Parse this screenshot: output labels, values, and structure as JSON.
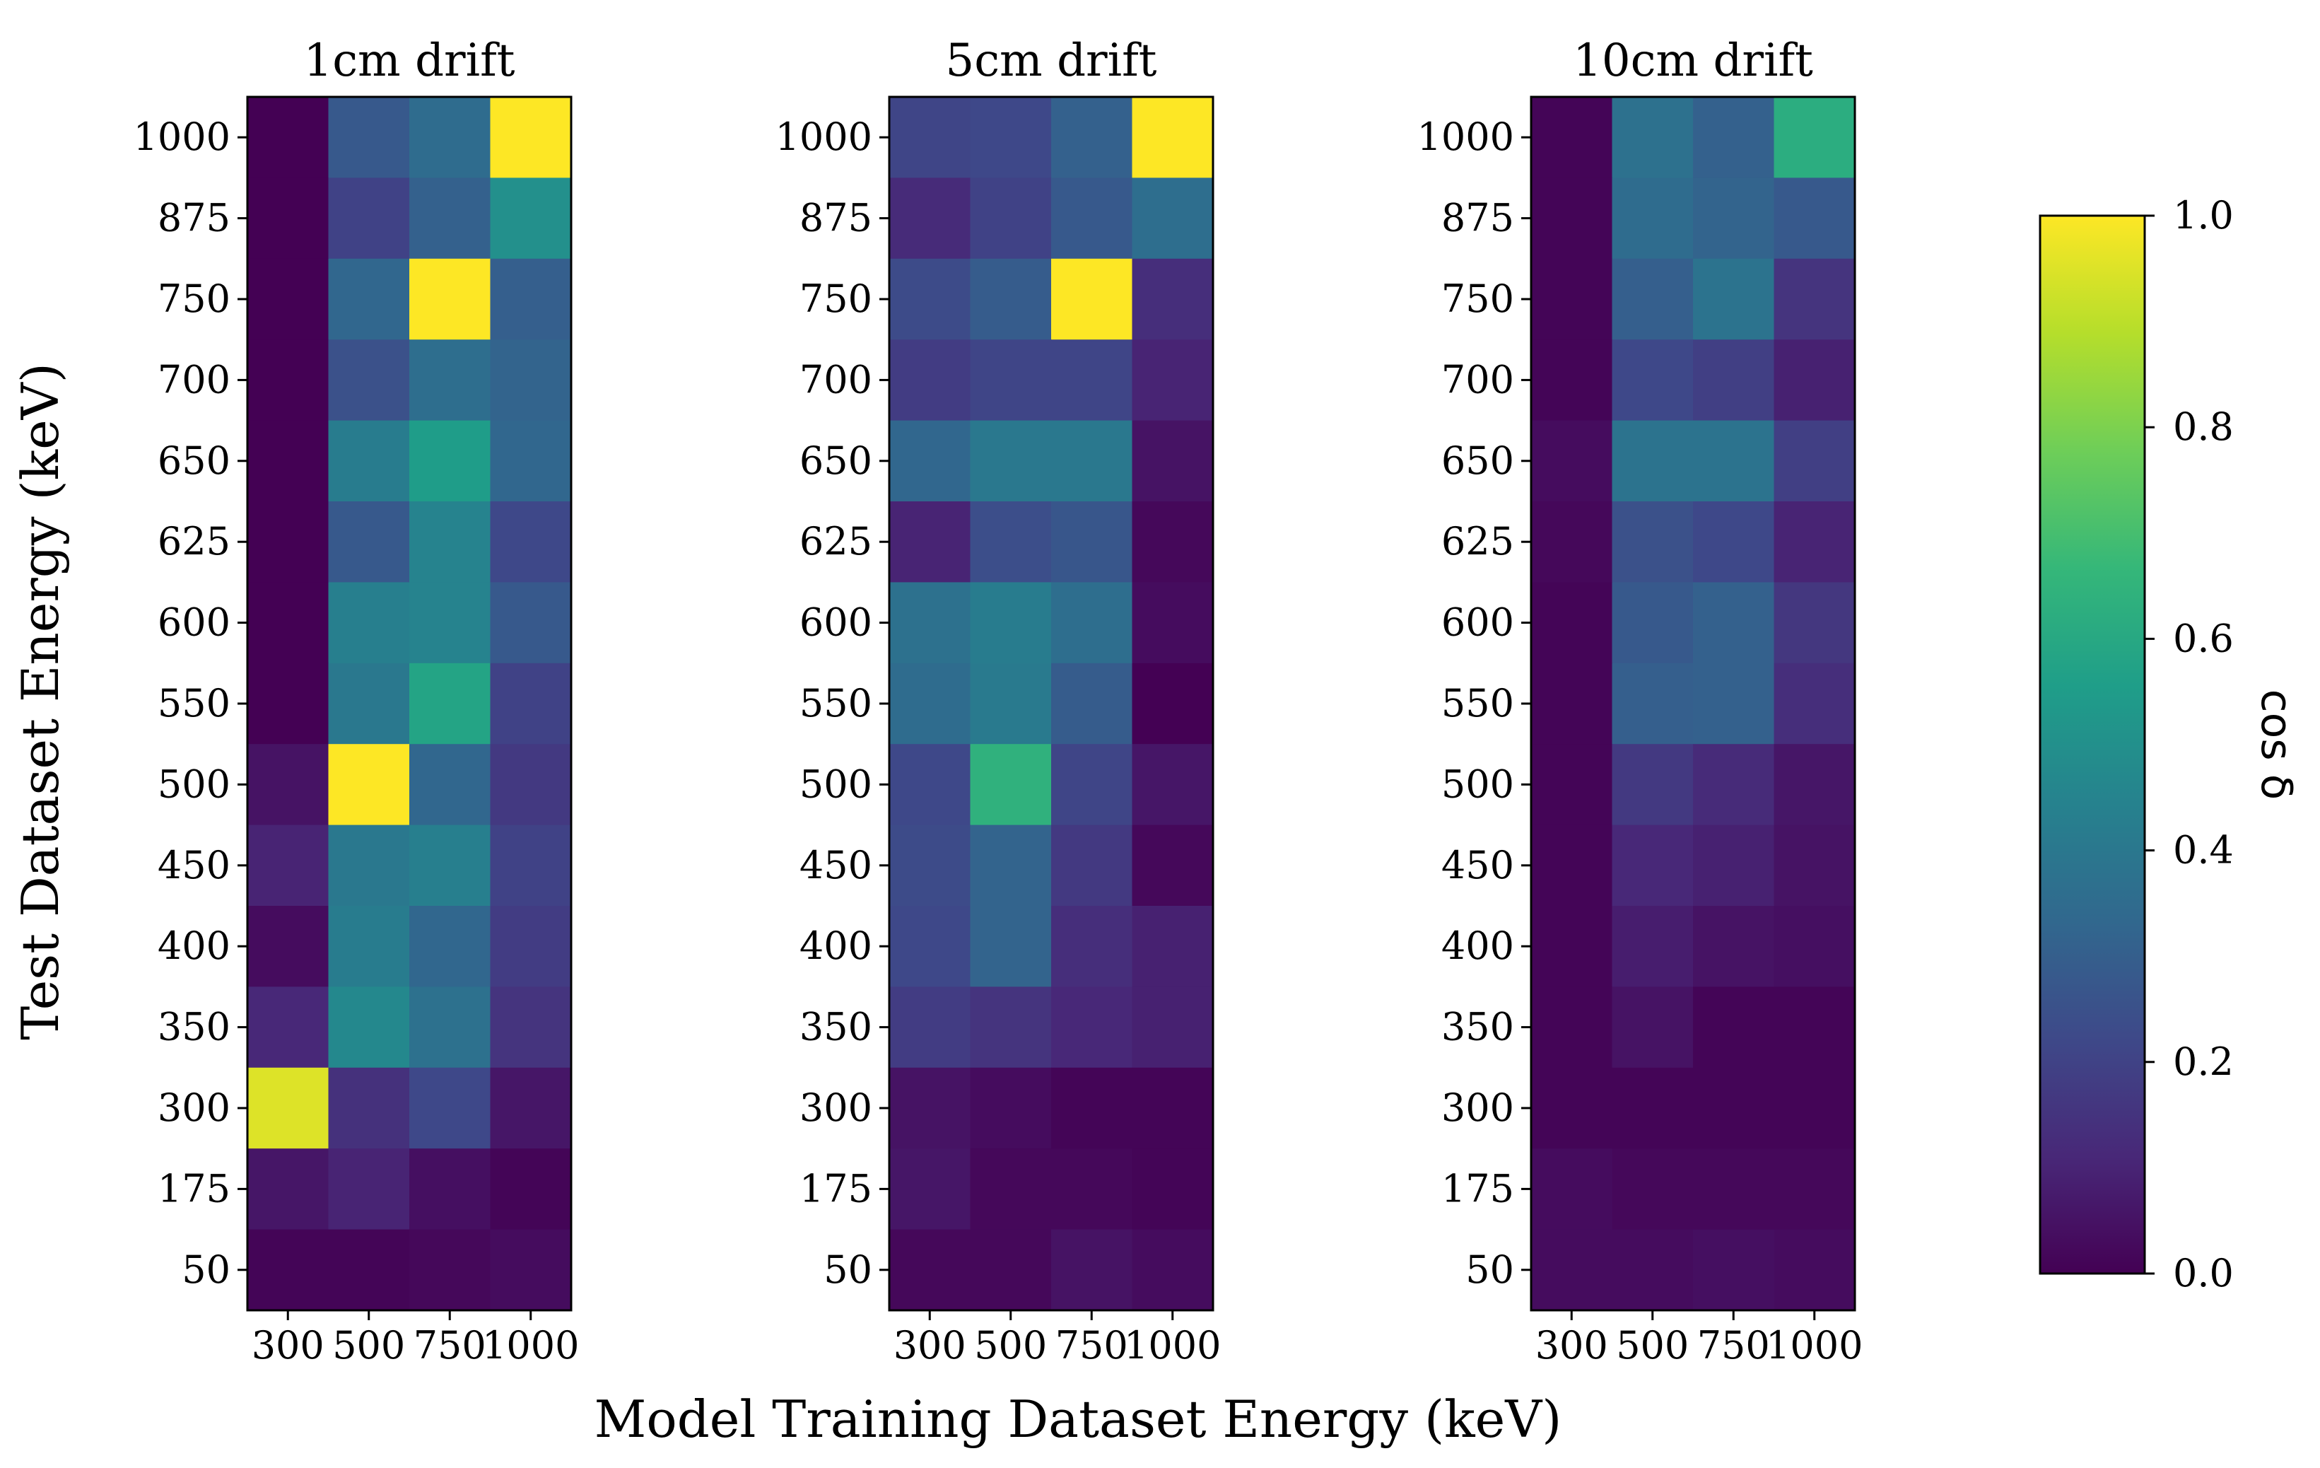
{
  "chart_data": {
    "type": "heatmap",
    "xlabel": "Model Training Dataset Energy (keV)",
    "ylabel": "Test Dataset Energy (keV)",
    "x_categories": [
      "300",
      "500",
      "750",
      "1000"
    ],
    "y_categories": [
      "1000",
      "875",
      "750",
      "700",
      "650",
      "625",
      "600",
      "550",
      "500",
      "450",
      "400",
      "350",
      "300",
      "175",
      "50"
    ],
    "colorbar": {
      "label": "cos δ",
      "range": [
        0.0,
        1.0
      ],
      "ticks": [
        "0.0",
        "0.2",
        "0.4",
        "0.6",
        "0.8",
        "1.0"
      ],
      "colormap": [
        "#440154",
        "#482878",
        "#3e4989",
        "#31688e",
        "#26828e",
        "#1f9e89",
        "#35b779",
        "#6ece58",
        "#b5de2b",
        "#fde725"
      ]
    },
    "panels": [
      {
        "title": "1cm drift",
        "values": [
          [
            0.0,
            0.28,
            0.35,
            1.0
          ],
          [
            0.0,
            0.2,
            0.31,
            0.5
          ],
          [
            0.0,
            0.33,
            1.0,
            0.3
          ],
          [
            0.0,
            0.25,
            0.36,
            0.32
          ],
          [
            0.0,
            0.42,
            0.55,
            0.33
          ],
          [
            0.0,
            0.28,
            0.45,
            0.22
          ],
          [
            0.0,
            0.43,
            0.45,
            0.28
          ],
          [
            0.0,
            0.4,
            0.58,
            0.2
          ],
          [
            0.05,
            1.0,
            0.33,
            0.17
          ],
          [
            0.1,
            0.4,
            0.43,
            0.2
          ],
          [
            0.03,
            0.42,
            0.33,
            0.18
          ],
          [
            0.11,
            0.47,
            0.37,
            0.15
          ],
          [
            0.95,
            0.14,
            0.22,
            0.06
          ],
          [
            0.06,
            0.1,
            0.04,
            0.01
          ],
          [
            0.01,
            0.01,
            0.02,
            0.03
          ]
        ]
      },
      {
        "title": "5cm drift",
        "values": [
          [
            0.21,
            0.22,
            0.31,
            1.0
          ],
          [
            0.12,
            0.2,
            0.28,
            0.36
          ],
          [
            0.23,
            0.29,
            1.0,
            0.13
          ],
          [
            0.18,
            0.21,
            0.21,
            0.1
          ],
          [
            0.33,
            0.4,
            0.4,
            0.05
          ],
          [
            0.1,
            0.24,
            0.27,
            0.02
          ],
          [
            0.37,
            0.42,
            0.36,
            0.03
          ],
          [
            0.35,
            0.41,
            0.29,
            0.0
          ],
          [
            0.22,
            0.64,
            0.21,
            0.06
          ],
          [
            0.23,
            0.32,
            0.17,
            0.02
          ],
          [
            0.22,
            0.32,
            0.13,
            0.09
          ],
          [
            0.18,
            0.15,
            0.11,
            0.09
          ],
          [
            0.05,
            0.03,
            0.01,
            0.01
          ],
          [
            0.06,
            0.02,
            0.02,
            0.01
          ],
          [
            0.02,
            0.02,
            0.05,
            0.03
          ]
        ]
      },
      {
        "title": "10cm drift",
        "values": [
          [
            0.01,
            0.37,
            0.31,
            0.62
          ],
          [
            0.01,
            0.35,
            0.32,
            0.28
          ],
          [
            0.01,
            0.3,
            0.38,
            0.15
          ],
          [
            0.01,
            0.22,
            0.19,
            0.09
          ],
          [
            0.03,
            0.38,
            0.38,
            0.19
          ],
          [
            0.02,
            0.25,
            0.22,
            0.1
          ],
          [
            0.01,
            0.28,
            0.31,
            0.16
          ],
          [
            0.01,
            0.3,
            0.31,
            0.13
          ],
          [
            0.01,
            0.17,
            0.12,
            0.06
          ],
          [
            0.01,
            0.11,
            0.09,
            0.05
          ],
          [
            0.01,
            0.08,
            0.05,
            0.04
          ],
          [
            0.01,
            0.05,
            0.01,
            0.01
          ],
          [
            0.01,
            0.01,
            0.01,
            0.01
          ],
          [
            0.03,
            0.02,
            0.02,
            0.02
          ],
          [
            0.03,
            0.03,
            0.04,
            0.03
          ]
        ]
      }
    ]
  }
}
